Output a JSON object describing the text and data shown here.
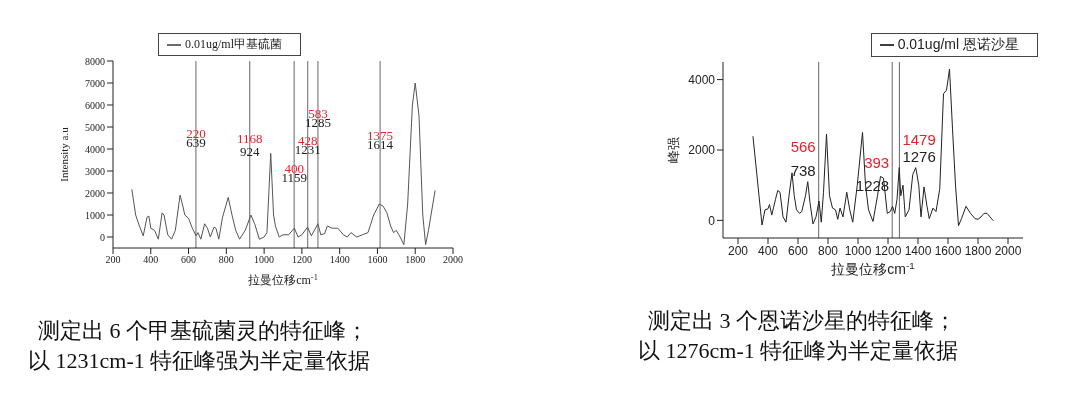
{
  "chart_data": [
    {
      "type": "line",
      "xlabel": "拉曼位移cm$^{-1}$",
      "ylabel": "Intensity a.u",
      "legend": "top left",
      "xlim": [
        200,
        2000
      ],
      "xticks": [
        200,
        400,
        600,
        800,
        1000,
        1200,
        1400,
        1600,
        1800,
        2000
      ],
      "ylim": [
        -500,
        8000
      ],
      "yticks": [
        0,
        1000,
        2000,
        3000,
        4000,
        5000,
        6000,
        7000,
        8000
      ],
      "x": [
        300,
        320,
        340,
        360,
        380,
        390,
        400,
        420,
        440,
        460,
        470,
        490,
        510,
        530,
        555,
        570,
        580,
        600,
        620,
        640,
        650,
        665,
        685,
        700,
        715,
        735,
        745,
        760,
        780,
        810,
        830,
        850,
        870,
        900,
        930,
        950,
        975,
        1000,
        1015,
        1035,
        1050,
        1060,
        1080,
        1100,
        1130,
        1160,
        1180,
        1200,
        1230,
        1250,
        1285,
        1300,
        1320,
        1335,
        1360,
        1390,
        1420,
        1440,
        1460,
        1490,
        1520,
        1550,
        1580,
        1610,
        1630,
        1650,
        1670,
        1685,
        1700,
        1720,
        1740,
        1760,
        1785,
        1800,
        1820,
        1840,
        1855,
        1870,
        1905
      ],
      "series": [
        {
          "name": "0.01ug/ml甲基硫菌",
          "color": "#555555",
          "values": [
            2150,
            1000,
            500,
            50,
            900,
            950,
            400,
            300,
            -100,
            1100,
            1000,
            100,
            -100,
            300,
            1900,
            1400,
            1000,
            850,
            400,
            50,
            200,
            -100,
            600,
            400,
            0,
            450,
            400,
            -100,
            900,
            1800,
            1000,
            300,
            -100,
            300,
            1000,
            600,
            -100,
            0,
            200,
            3800,
            1000,
            500,
            0,
            100,
            100,
            400,
            0,
            100,
            450,
            50,
            600,
            100,
            150,
            500,
            400,
            400,
            100,
            0,
            200,
            0,
            100,
            200,
            1000,
            1500,
            1400,
            1100,
            500,
            200,
            300,
            0,
            -350,
            1500,
            6000,
            7000,
            5500,
            1000,
            -350,
            300,
            2100
          ]
        }
      ],
      "ref_lines": [
        {
          "axis": "x",
          "value": 639
        },
        {
          "axis": "x",
          "value": 924
        },
        {
          "axis": "x",
          "value": 1159
        },
        {
          "axis": "x",
          "value": 1231
        },
        {
          "axis": "x",
          "value": 1285
        },
        {
          "axis": "x",
          "value": 1614
        }
      ],
      "annotations": [
        {
          "text": "220",
          "x": 639,
          "y": 4700
        },
        {
          "text": "639",
          "x": 639,
          "y": 4300
        },
        {
          "text": "1168",
          "x": 924,
          "y": 4500
        },
        {
          "text": "924",
          "x": 924,
          "y": 3900
        },
        {
          "text": "400",
          "x": 1159,
          "y": 3100
        },
        {
          "text": "1159",
          "x": 1159,
          "y": 2700
        },
        {
          "text": "428",
          "x": 1231,
          "y": 4400
        },
        {
          "text": "1231",
          "x": 1231,
          "y": 4000
        },
        {
          "text": "583",
          "x": 1285,
          "y": 5600
        },
        {
          "text": "1285",
          "x": 1285,
          "y": 5200
        },
        {
          "text": "1375",
          "x": 1614,
          "y": 4600
        },
        {
          "text": "1614",
          "x": 1614,
          "y": 4200
        },
        "测定出 6 个甲基硫菌灵的特征峰；",
        "以 1231cm-1 特征峰强为半定量依据"
      ]
    },
    {
      "type": "line",
      "xlabel": "拉曼位移cm$^{-1}$",
      "ylabel": "峰强",
      "legend": "top right",
      "xlim": [
        100,
        2100
      ],
      "xticks": [
        200,
        400,
        600,
        800,
        1000,
        1200,
        1400,
        1600,
        1800,
        2000
      ],
      "ylim": [
        -500,
        4500
      ],
      "yticks": [
        0,
        2000,
        4000
      ],
      "x": [
        300,
        340,
        360,
        380,
        400,
        410,
        425,
        450,
        465,
        480,
        500,
        520,
        540,
        560,
        575,
        590,
        610,
        625,
        650,
        665,
        680,
        700,
        720,
        740,
        755,
        770,
        790,
        810,
        830,
        850,
        865,
        880,
        900,
        925,
        945,
        965,
        995,
        1030,
        1050,
        1070,
        1100,
        1130,
        1150,
        1170,
        1195,
        1215,
        1230,
        1245,
        1260,
        1275,
        1285,
        1300,
        1315,
        1340,
        1365,
        1385,
        1405,
        1420,
        1440,
        1460,
        1475,
        1500,
        1520,
        1545,
        1570,
        1590,
        1610,
        1630,
        1650,
        1670,
        1690,
        1720,
        1750,
        1780,
        1800,
        1820,
        1840,
        1860,
        1880,
        1900
      ],
      "series": [
        {
          "name": "0.01ug/ml 恩诺沙星",
          "color": "#222222",
          "values": [
            2380,
            700,
            -130,
            300,
            330,
            450,
            150,
            600,
            850,
            800,
            100,
            -50,
            700,
            1350,
            700,
            300,
            200,
            250,
            700,
            1100,
            500,
            -100,
            100,
            550,
            -50,
            800,
            2450,
            700,
            350,
            300,
            30,
            350,
            100,
            800,
            300,
            -50,
            1000,
            2500,
            1000,
            300,
            -30,
            700,
            1250,
            1200,
            200,
            250,
            400,
            200,
            600,
            1500,
            700,
            1000,
            100,
            300,
            1300,
            1500,
            1000,
            100,
            950,
            400,
            50,
            350,
            250,
            900,
            3600,
            3700,
            4300,
            2600,
            1000,
            -150,
            50,
            400,
            200,
            50,
            30,
            100,
            200,
            200,
            100,
            0
          ]
        }
      ],
      "ref_lines": [
        {
          "axis": "x",
          "value": 738
        },
        {
          "axis": "x",
          "value": 1228
        },
        {
          "axis": "x",
          "value": 1276
        }
      ],
      "annotations": [
        {
          "text": "566",
          "x": 738,
          "y": 2100
        },
        {
          "text": "738",
          "x": 738,
          "y": 1400
        },
        {
          "text": "393",
          "x": 1228,
          "y": 1650
        },
        {
          "text": "1228",
          "x": 1228,
          "y": 1000
        },
        {
          "text": "1479",
          "x": 1276,
          "y": 2300
        },
        {
          "text": "1276",
          "x": 1276,
          "y": 1800
        },
        "测定出 3 个恩诺沙星的特征峰；",
        "以 1276cm-1 特征峰为半定量依据"
      ]
    }
  ]
}
